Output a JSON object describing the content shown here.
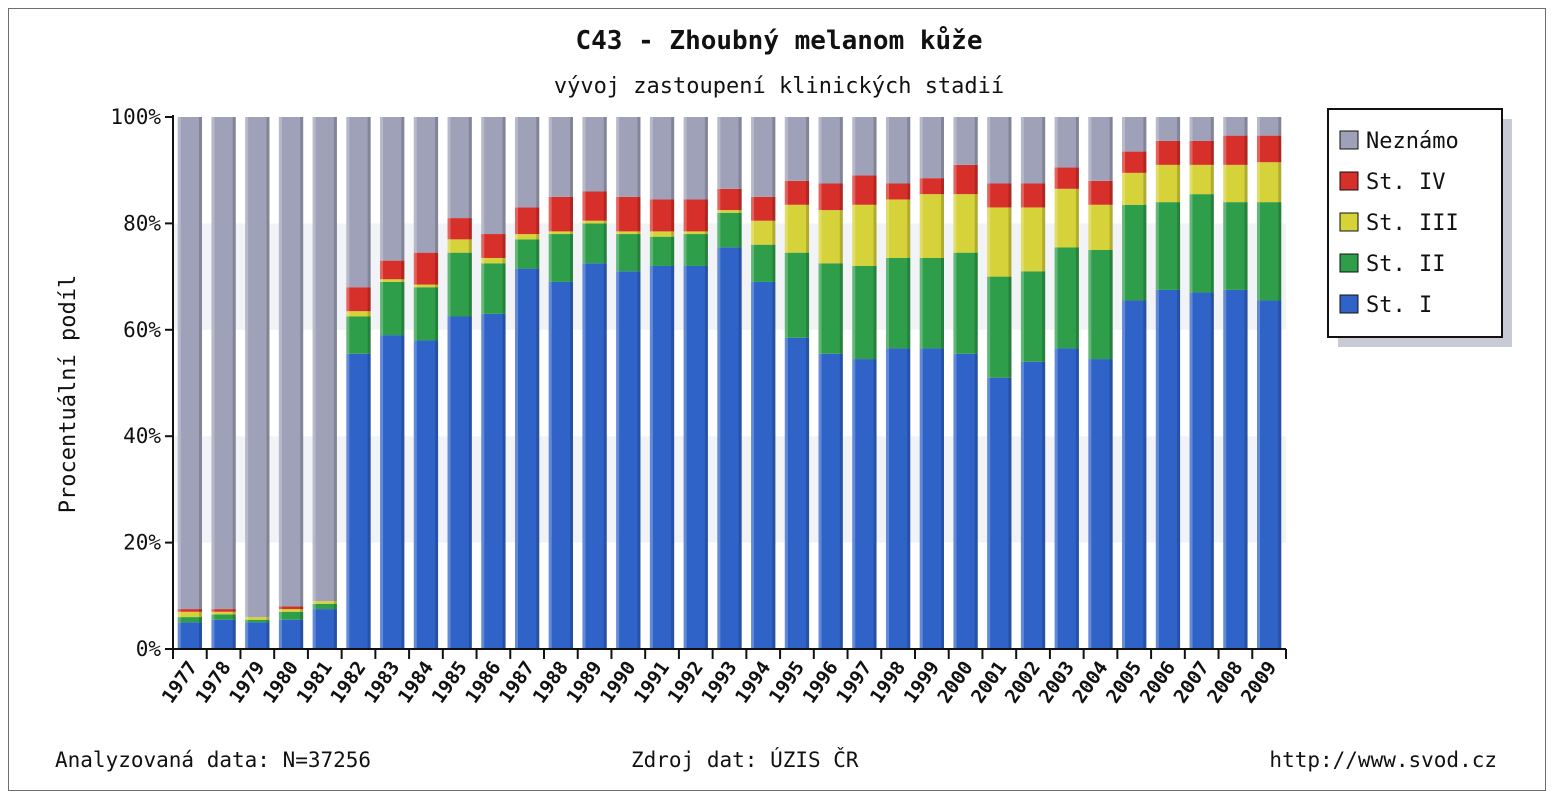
{
  "chart_data": {
    "type": "bar",
    "stacked": true,
    "title": "C43 - Zhoubný melanom kůže",
    "subtitle": "vývoj zastoupení klinických stadií",
    "ylabel": "Procentuální podíl",
    "ylim": [
      0,
      100
    ],
    "yticks": [
      "0%",
      "20%",
      "40%",
      "60%",
      "80%",
      "100%"
    ],
    "categories": [
      "1977",
      "1978",
      "1979",
      "1980",
      "1981",
      "1982",
      "1983",
      "1984",
      "1985",
      "1986",
      "1987",
      "1988",
      "1989",
      "1990",
      "1991",
      "1992",
      "1993",
      "1994",
      "1995",
      "1996",
      "1997",
      "1998",
      "1999",
      "2000",
      "2001",
      "2002",
      "2003",
      "2004",
      "2005",
      "2006",
      "2007",
      "2008",
      "2009"
    ],
    "legend_position": "right",
    "series": [
      {
        "name": "St. I",
        "color": "#2f63c8",
        "values": [
          5,
          5.5,
          5,
          5.5,
          7.5,
          55.5,
          59,
          58,
          62.5,
          63,
          71.5,
          69,
          72.5,
          71,
          72,
          72,
          75.5,
          69,
          58.5,
          55.5,
          54.5,
          56.5,
          56.5,
          55.5,
          51,
          54,
          56.5,
          54.5,
          65.5,
          67.5,
          67,
          67.5,
          65.5
        ]
      },
      {
        "name": "St. II",
        "color": "#2e9e4a",
        "values": [
          1,
          1,
          0.5,
          1.5,
          1,
          7,
          10,
          10,
          12,
          9.5,
          5.5,
          9,
          7.5,
          7,
          5.5,
          6,
          6.5,
          7,
          16,
          17,
          17.5,
          17,
          17,
          19,
          19,
          17,
          19,
          20.5,
          18,
          16.5,
          18.5,
          16.5,
          18.5
        ]
      },
      {
        "name": "St. III",
        "color": "#d6d23a",
        "values": [
          1,
          0.5,
          0.5,
          0.5,
          0.5,
          1,
          0.5,
          0.5,
          2.5,
          1,
          1,
          0.5,
          0.5,
          0.5,
          1,
          0.5,
          0.5,
          4.5,
          9,
          10,
          11.5,
          11,
          12,
          11,
          13,
          12,
          11,
          8.5,
          6,
          7,
          5.5,
          7,
          7.5
        ]
      },
      {
        "name": "St. IV",
        "color": "#d7302a",
        "values": [
          0.5,
          0.5,
          0,
          0.5,
          0,
          4.5,
          3.5,
          6,
          4,
          4.5,
          5,
          6.5,
          5.5,
          6.5,
          6,
          6,
          4,
          4.5,
          4.5,
          5,
          5.5,
          3,
          3,
          5.5,
          4.5,
          4.5,
          4,
          4.5,
          4,
          4.5,
          4.5,
          5.5,
          5
        ]
      },
      {
        "name": "Neznámo",
        "color": "#9fa1b9",
        "values": [
          92.5,
          92.5,
          94,
          92,
          91,
          32,
          27,
          25.5,
          19,
          22,
          17,
          15,
          14,
          15,
          15.5,
          15.5,
          13.5,
          15,
          12,
          12.5,
          11,
          12.5,
          11.5,
          9,
          12.5,
          12.5,
          9.5,
          12,
          6.5,
          4.5,
          4.5,
          3.5,
          3.5
        ]
      }
    ]
  },
  "legend": {
    "items": [
      {
        "label": "Neznámo",
        "color": "#9fa1b9"
      },
      {
        "label": "St. IV",
        "color": "#d7302a"
      },
      {
        "label": "St. III",
        "color": "#d6d23a"
      },
      {
        "label": "St. II",
        "color": "#2e9e4a"
      },
      {
        "label": "St. I",
        "color": "#2f63c8"
      }
    ]
  },
  "footer": {
    "left": "Analyzovaná data: N=37256",
    "center": "Zdroj dat: ÚZIS ČR",
    "right": "http://www.svod.cz"
  }
}
